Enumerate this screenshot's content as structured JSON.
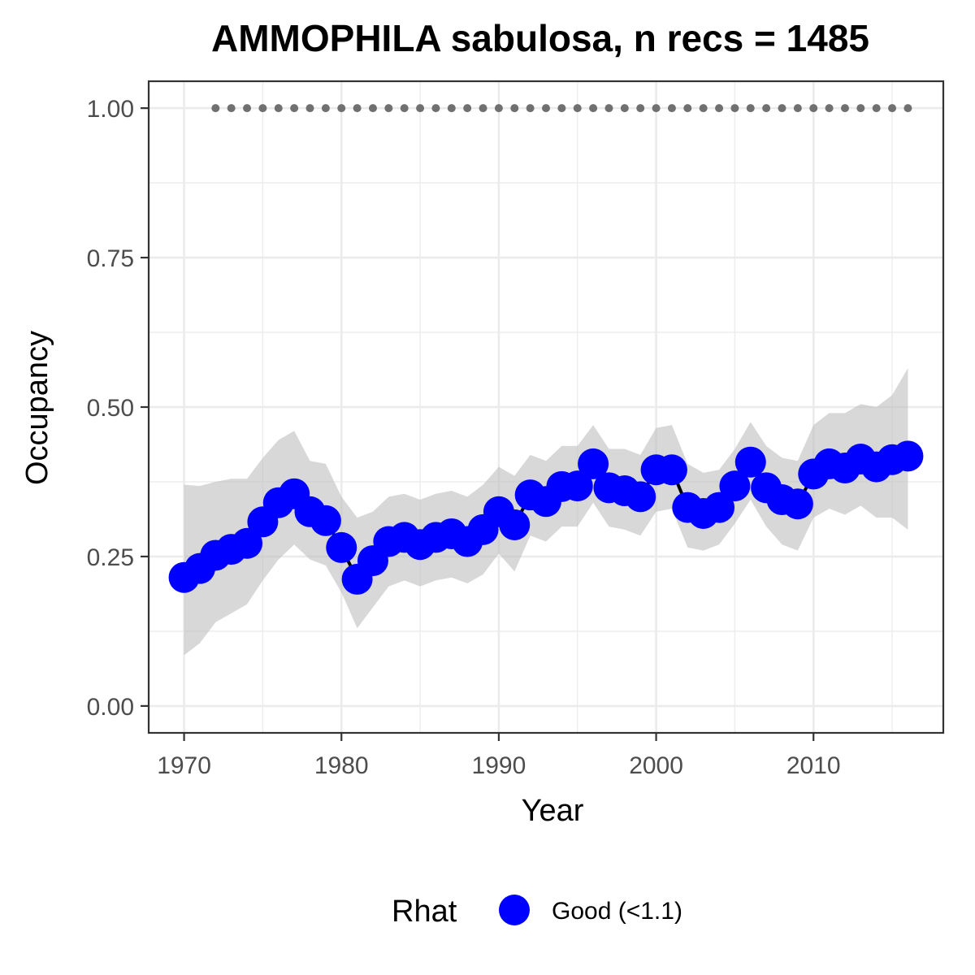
{
  "chart_data": {
    "type": "line",
    "title": "AMMOPHILA sabulosa, n recs = 1485",
    "xlabel": "Year",
    "ylabel": "Occupancy",
    "xlim": [
      1967.75,
      2018.25
    ],
    "ylim": [
      -0.045,
      1.045
    ],
    "x_ticks": [
      1970,
      1980,
      1990,
      2000,
      2010
    ],
    "x_tick_labels": [
      "1970",
      "1980",
      "1990",
      "2000",
      "2010"
    ],
    "y_ticks": [
      0,
      0.25,
      0.5,
      0.75,
      1.0
    ],
    "y_tick_labels": [
      "0.00",
      "0.25",
      "0.50",
      "0.75",
      "1.00"
    ],
    "grid": true,
    "legend": {
      "title": "Rhat",
      "position": "bottom",
      "entries": [
        {
          "label": "Good (<1.1)",
          "color": "#0000ff"
        }
      ]
    },
    "colors": {
      "points": "#0000ff",
      "line": "#000000",
      "ribbon": "#bebebe",
      "rug": "#707070",
      "panel_border": "#333333",
      "grid": "#ebebeb"
    },
    "series": [
      {
        "kind": "mean_occupancy",
        "x": [
          1970,
          1971,
          1972,
          1973,
          1974,
          1975,
          1976,
          1977,
          1978,
          1979,
          1980,
          1981,
          1982,
          1983,
          1984,
          1985,
          1986,
          1987,
          1988,
          1989,
          1990,
          1991,
          1992,
          1993,
          1994,
          1995,
          1996,
          1997,
          1998,
          1999,
          2000,
          2001,
          2002,
          2003,
          2004,
          2005,
          2006,
          2007,
          2008,
          2009,
          2010,
          2011,
          2012,
          2013,
          2014,
          2015,
          2016
        ],
        "y": [
          0.215,
          0.23,
          0.252,
          0.262,
          0.272,
          0.308,
          0.34,
          0.355,
          0.325,
          0.31,
          0.265,
          0.212,
          0.243,
          0.275,
          0.282,
          0.27,
          0.282,
          0.288,
          0.275,
          0.295,
          0.325,
          0.303,
          0.353,
          0.342,
          0.367,
          0.368,
          0.405,
          0.365,
          0.36,
          0.35,
          0.395,
          0.395,
          0.332,
          0.322,
          0.332,
          0.368,
          0.408,
          0.365,
          0.345,
          0.338,
          0.388,
          0.405,
          0.398,
          0.413,
          0.4,
          0.412,
          0.418
        ]
      },
      {
        "kind": "credible_interval",
        "x": [
          1970,
          1971,
          1972,
          1973,
          1974,
          1975,
          1976,
          1977,
          1978,
          1979,
          1980,
          1981,
          1982,
          1983,
          1984,
          1985,
          1986,
          1987,
          1988,
          1989,
          1990,
          1991,
          1992,
          1993,
          1994,
          1995,
          1996,
          1997,
          1998,
          1999,
          2000,
          2001,
          2002,
          2003,
          2004,
          2005,
          2006,
          2007,
          2008,
          2009,
          2010,
          2011,
          2012,
          2013,
          2014,
          2015,
          2016
        ],
        "lower": [
          0.085,
          0.105,
          0.14,
          0.155,
          0.17,
          0.21,
          0.245,
          0.27,
          0.245,
          0.235,
          0.19,
          0.13,
          0.165,
          0.2,
          0.21,
          0.2,
          0.21,
          0.215,
          0.205,
          0.22,
          0.255,
          0.225,
          0.285,
          0.275,
          0.3,
          0.3,
          0.34,
          0.3,
          0.295,
          0.285,
          0.325,
          0.33,
          0.265,
          0.26,
          0.27,
          0.305,
          0.345,
          0.3,
          0.27,
          0.26,
          0.315,
          0.33,
          0.32,
          0.335,
          0.315,
          0.315,
          0.295
        ],
        "upper": [
          0.37,
          0.368,
          0.375,
          0.38,
          0.38,
          0.415,
          0.445,
          0.46,
          0.41,
          0.405,
          0.35,
          0.315,
          0.325,
          0.35,
          0.355,
          0.345,
          0.355,
          0.36,
          0.35,
          0.37,
          0.4,
          0.385,
          0.42,
          0.41,
          0.435,
          0.435,
          0.47,
          0.43,
          0.43,
          0.42,
          0.465,
          0.47,
          0.405,
          0.39,
          0.395,
          0.43,
          0.475,
          0.435,
          0.415,
          0.41,
          0.47,
          0.49,
          0.49,
          0.505,
          0.5,
          0.52,
          0.565
        ]
      },
      {
        "kind": "records_rug",
        "x": [
          1972,
          1973,
          1974,
          1975,
          1976,
          1977,
          1978,
          1979,
          1980,
          1981,
          1982,
          1983,
          1984,
          1985,
          1986,
          1987,
          1988,
          1989,
          1990,
          1991,
          1992,
          1993,
          1994,
          1995,
          1996,
          1997,
          1998,
          1999,
          2000,
          2001,
          2002,
          2003,
          2004,
          2005,
          2006,
          2007,
          2008,
          2009,
          2010,
          2011,
          2012,
          2013,
          2014,
          2015,
          2016
        ],
        "y": 1.0
      }
    ]
  }
}
